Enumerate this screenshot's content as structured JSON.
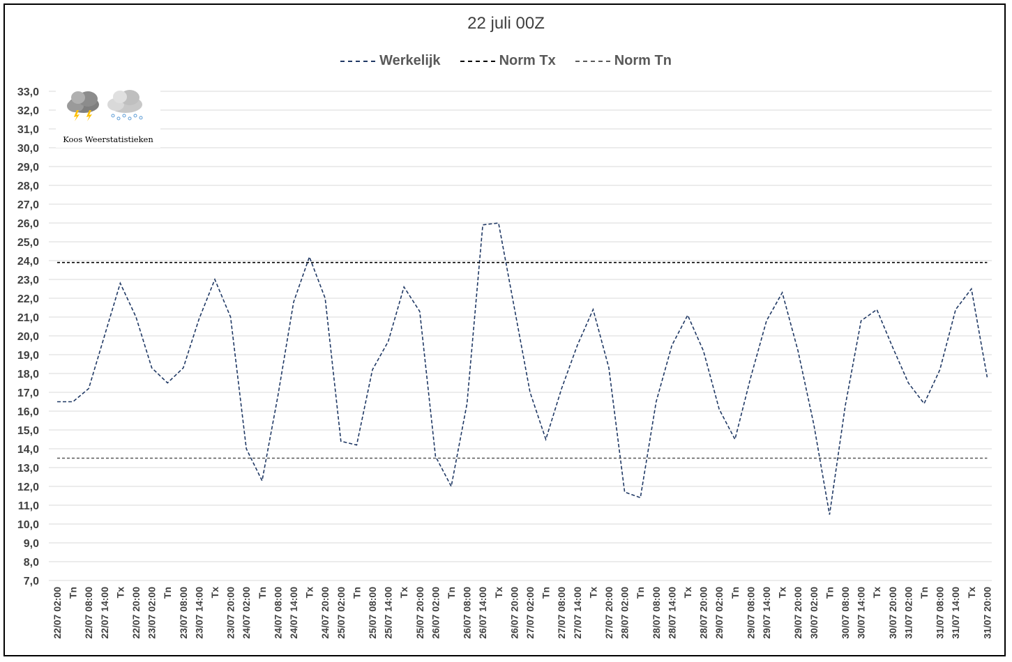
{
  "chart_data": {
    "type": "line",
    "title": "22 juli 00Z",
    "xlabel": "",
    "ylabel": "",
    "ylim": [
      7,
      33
    ],
    "yticks": [
      "7,0",
      "8,0",
      "9,0",
      "10,0",
      "11,0",
      "12,0",
      "13,0",
      "14,0",
      "15,0",
      "16,0",
      "17,0",
      "18,0",
      "19,0",
      "20,0",
      "21,0",
      "22,0",
      "23,0",
      "24,0",
      "25,0",
      "26,0",
      "27,0",
      "28,0",
      "29,0",
      "30,0",
      "31,0",
      "32,0",
      "33,0"
    ],
    "grid": true,
    "legend_position": "top",
    "categories": [
      "22/07 02:00",
      "Tn",
      "22/07 08:00",
      "22/07 14:00",
      "Tx",
      "22/07 20:00",
      "23/07 02:00",
      "Tn",
      "23/07 08:00",
      "23/07 14:00",
      "Tx",
      "23/07 20:00",
      "24/07 02:00",
      "Tn",
      "24/07 08:00",
      "24/07 14:00",
      "Tx",
      "24/07 20:00",
      "25/07 02:00",
      "Tn",
      "25/07 08:00",
      "25/07 14:00",
      "Tx",
      "25/07 20:00",
      "26/07 02:00",
      "Tn",
      "26/07 08:00",
      "26/07 14:00",
      "Tx",
      "26/07 20:00",
      "27/07 02:00",
      "Tn",
      "27/07 08:00",
      "27/07 14:00",
      "Tx",
      "27/07 20:00",
      "28/07 02:00",
      "Tn",
      "28/07 08:00",
      "28/07 14:00",
      "Tx",
      "28/07 20:00",
      "29/07 02:00",
      "Tn",
      "29/07 08:00",
      "29/07 14:00",
      "Tx",
      "29/07 20:00",
      "30/07 02:00",
      "Tn",
      "30/07 08:00",
      "30/07 14:00",
      "Tx",
      "30/07 20:00",
      "31/07 02:00",
      "Tn",
      "31/07 08:00",
      "31/07 14:00",
      "Tx",
      "31/07 20:00"
    ],
    "series": [
      {
        "name": "Werkelijk",
        "color": "#1f3864",
        "dash": "dashed",
        "values": [
          16.5,
          16.5,
          17.2,
          20.0,
          22.8,
          21.0,
          18.3,
          17.5,
          18.3,
          20.9,
          23.0,
          21.0,
          14.0,
          12.3,
          16.8,
          21.8,
          24.2,
          22.0,
          14.4,
          14.2,
          18.2,
          19.7,
          22.6,
          21.3,
          13.6,
          12.0,
          16.4,
          25.9,
          26.0,
          21.5,
          17.0,
          14.5,
          17.2,
          19.5,
          21.4,
          18.3,
          11.7,
          11.4,
          16.5,
          19.5,
          21.1,
          19.2,
          16.1,
          14.5,
          17.8,
          20.8,
          22.3,
          19.2,
          15.3,
          10.5,
          16.3,
          20.8,
          21.4,
          19.4,
          17.5,
          16.4,
          18.2,
          21.4,
          22.5,
          17.8
        ]
      },
      {
        "name": "Norm Tx",
        "color": "#000000",
        "dash": "dashed",
        "constant": 23.9
      },
      {
        "name": "Norm Tn",
        "color": "#595959",
        "dash": "dashed",
        "constant": 13.5
      }
    ]
  },
  "logo": {
    "text": "Koos Weerstatistieken",
    "icons": [
      "thunderstorm-cloud-icon",
      "snow-cloud-icon"
    ]
  },
  "colors": {
    "axis_text": "#404040",
    "grid": "#d9d9d9",
    "frame": "#000000"
  }
}
